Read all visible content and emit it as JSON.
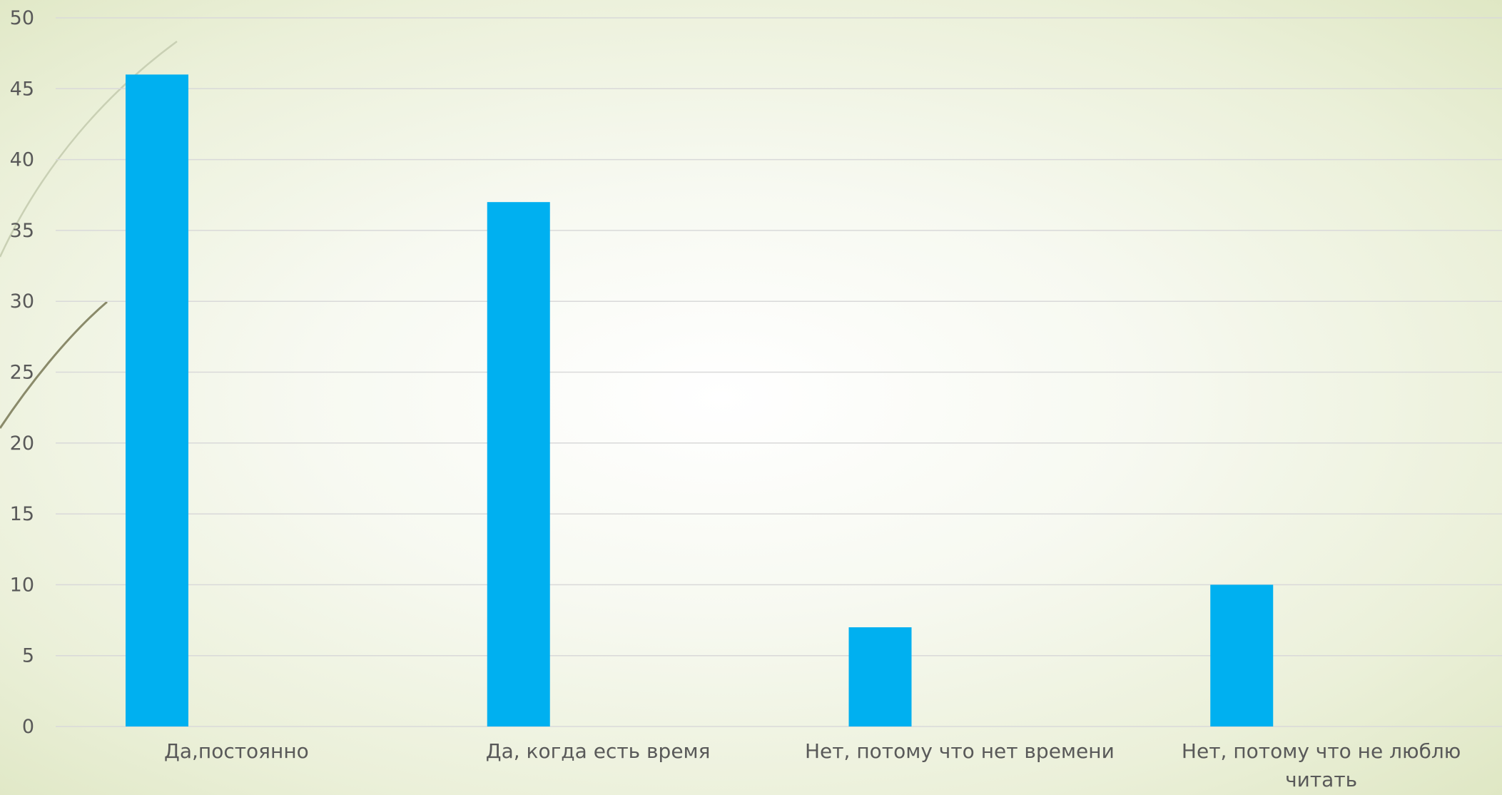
{
  "chart_data": {
    "type": "bar",
    "title": "",
    "xlabel": "",
    "ylabel": "",
    "categories": [
      [
        "Да,постоянно"
      ],
      [
        "Да, когда есть время"
      ],
      [
        "Нет, потому что нет времени"
      ],
      [
        "Нет, потому что не люблю",
        "читать"
      ]
    ],
    "values": [
      46,
      37,
      7,
      10
    ],
    "ylim": [
      0,
      50
    ],
    "yticks": [
      "0",
      "5",
      "10",
      "15",
      "20",
      "25",
      "30",
      "35",
      "40",
      "45",
      "50"
    ],
    "grid": true,
    "legend": "none",
    "bar_color": "#00B0F0",
    "grid_color": "#D9D9D9",
    "text_color": "#595959"
  }
}
